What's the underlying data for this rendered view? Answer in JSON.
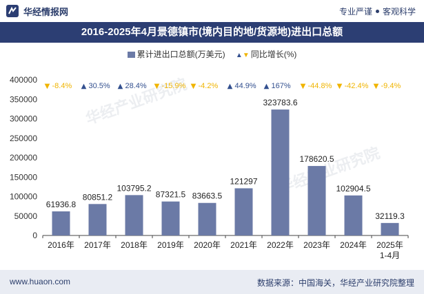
{
  "header": {
    "brand": "华经情报网",
    "slogan_left": "专业严谨",
    "slogan_right": "客观科学"
  },
  "chart_title": "2016-2025年4月景德镇市(境内目的地/货源地)进出口总额",
  "legend": {
    "bar_label": "累计进出口总额(万美元)",
    "line_label": "同比增长(%)"
  },
  "footer": {
    "left": "www.huaon.com",
    "right": "数据来源：中国海关，华经产业研究院整理"
  },
  "colors": {
    "bar": "#6b7aa6",
    "up": "#33508f",
    "down": "#f0b400",
    "title_bg": "#2c3e73"
  },
  "chart_data": {
    "type": "bar",
    "categories": [
      "2016年",
      "2017年",
      "2018年",
      "2019年",
      "2020年",
      "2021年",
      "2022年",
      "2023年",
      "2024年",
      "2025年\n1-4月"
    ],
    "values": [
      61936.8,
      80851.2,
      103795.2,
      87321.5,
      83663.5,
      121297,
      323783.6,
      178620.5,
      102904.5,
      32119.3
    ],
    "value_labels": [
      "61936.8",
      "80851.2",
      "103795.2",
      "87321.5",
      "83663.5",
      "121297",
      "323783.6",
      "178620.5",
      "102904.5",
      "32119.3"
    ],
    "growth_labels": [
      "-8.4%",
      "30.5%",
      "28.4%",
      "-15.9%",
      "-4.2%",
      "44.9%",
      "167%",
      "-44.8%",
      "-42.4%",
      "-9.4%"
    ],
    "growth_direction": [
      "down",
      "up",
      "up",
      "down",
      "down",
      "up",
      "up",
      "down",
      "down",
      "down"
    ],
    "ylim": [
      0,
      400000
    ],
    "yticks": [
      "0",
      "50000",
      "100000",
      "150000",
      "200000",
      "250000",
      "300000",
      "350000",
      "400000"
    ],
    "grid": false
  }
}
